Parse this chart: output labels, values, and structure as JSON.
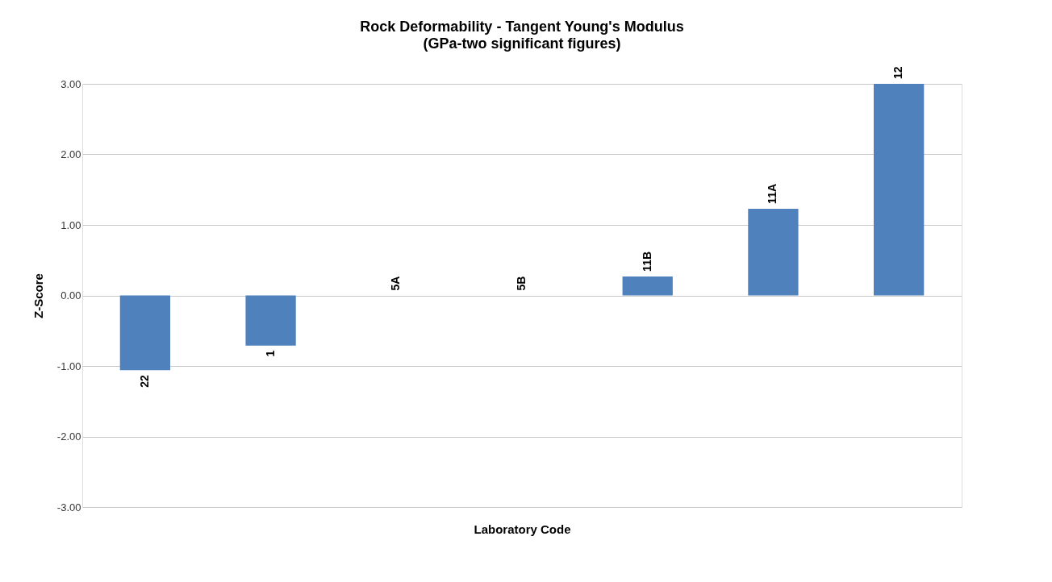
{
  "chart_data": {
    "type": "bar",
    "title": "Rock Deformability - Tangent Young's Modulus",
    "subtitle": "(GPa-two significant figures)",
    "xlabel": "Laboratory Code",
    "ylabel": "Z-Score",
    "categories": [
      "22",
      "1",
      "5A",
      "5B",
      "11B",
      "11A",
      "12"
    ],
    "values": [
      -1.06,
      -0.71,
      0,
      0,
      0.27,
      1.23,
      3.0
    ],
    "color": "#4f81bd",
    "ylim": [
      -3,
      3
    ],
    "yticks": [
      {
        "value": -3,
        "label": "-3.00"
      },
      {
        "value": -2,
        "label": "-2.00"
      },
      {
        "value": -1,
        "label": "-1.00"
      },
      {
        "value": 0,
        "label": "0.00"
      },
      {
        "value": 1,
        "label": "1.00"
      },
      {
        "value": 2,
        "label": "2.00"
      },
      {
        "value": 3,
        "label": "3.00"
      }
    ],
    "grid": "y",
    "tick_labels": "y"
  }
}
